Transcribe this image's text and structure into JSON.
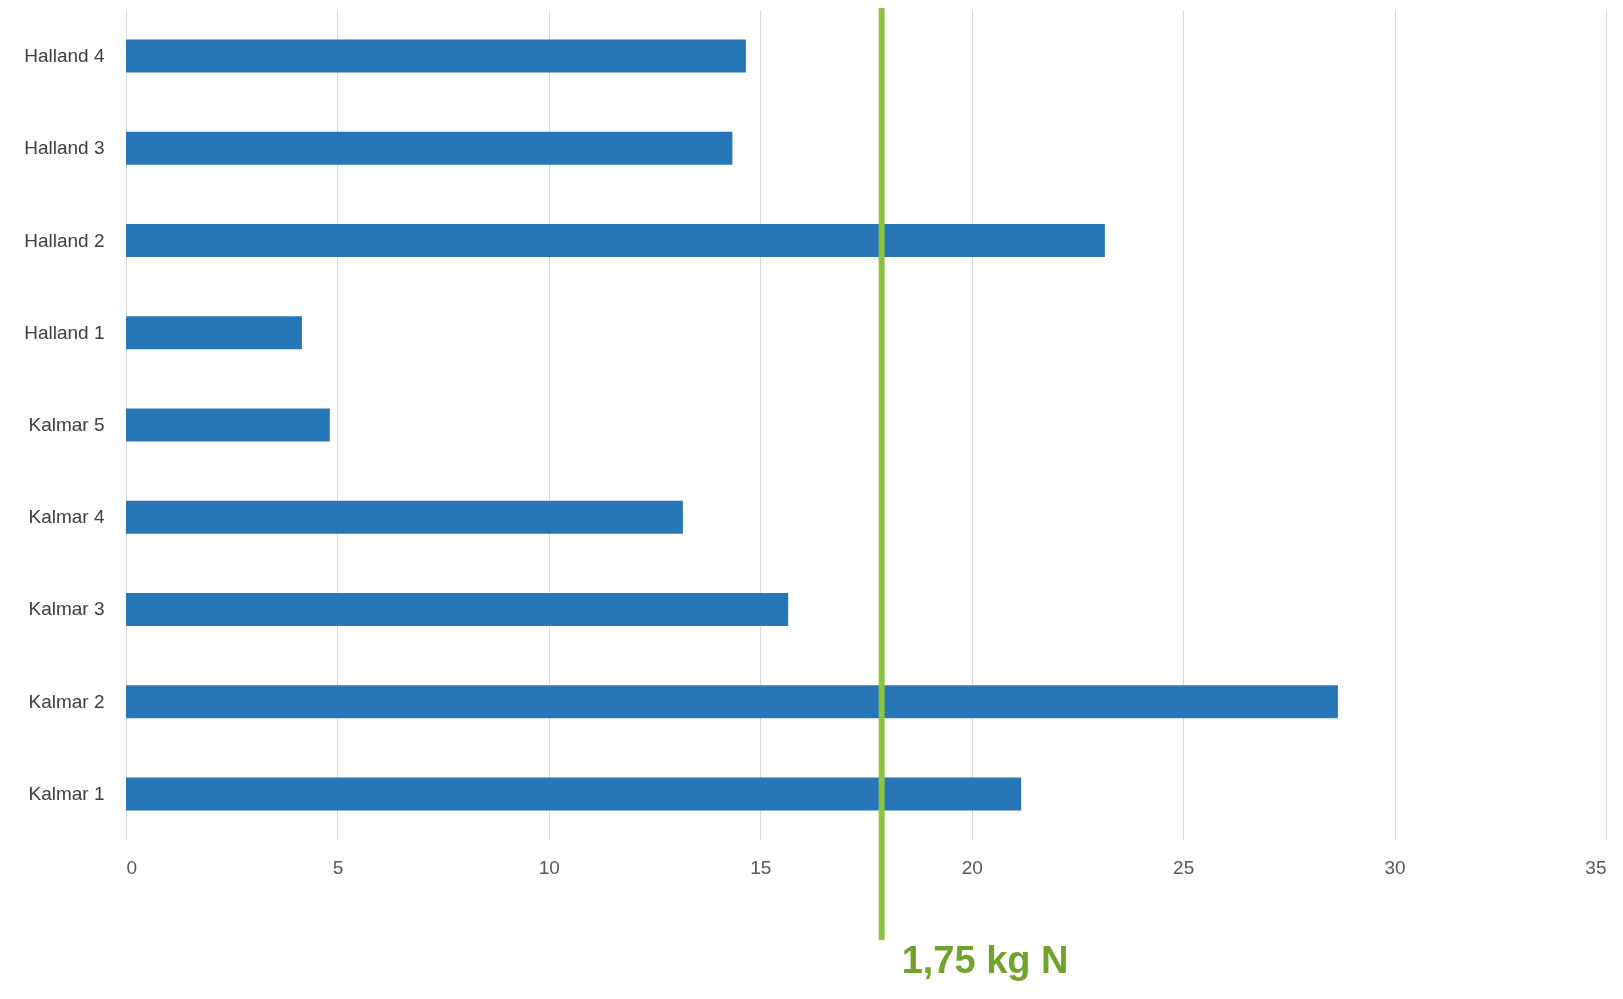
{
  "chart_data": {
    "type": "bar",
    "orientation": "horizontal",
    "categories": [
      "Halland 4",
      "Halland 3",
      "Halland 2",
      "Halland 1",
      "Kalmar 5",
      "Kalmar 4",
      "Kalmar 3",
      "Kalmar 2",
      "Kalmar 1"
    ],
    "values": [
      14.66,
      14.34,
      23.15,
      4.16,
      4.82,
      13.17,
      15.66,
      28.66,
      21.17
    ],
    "color": "#2777b8",
    "xlim": [
      0,
      35
    ],
    "xticks": [
      0,
      5,
      10,
      15,
      20,
      25,
      30,
      35
    ],
    "grid": "x",
    "ref_lines": [
      {
        "axis": "x",
        "value": 17.87,
        "label": "1,75 kg N",
        "color": "#8cc43f"
      }
    ]
  }
}
